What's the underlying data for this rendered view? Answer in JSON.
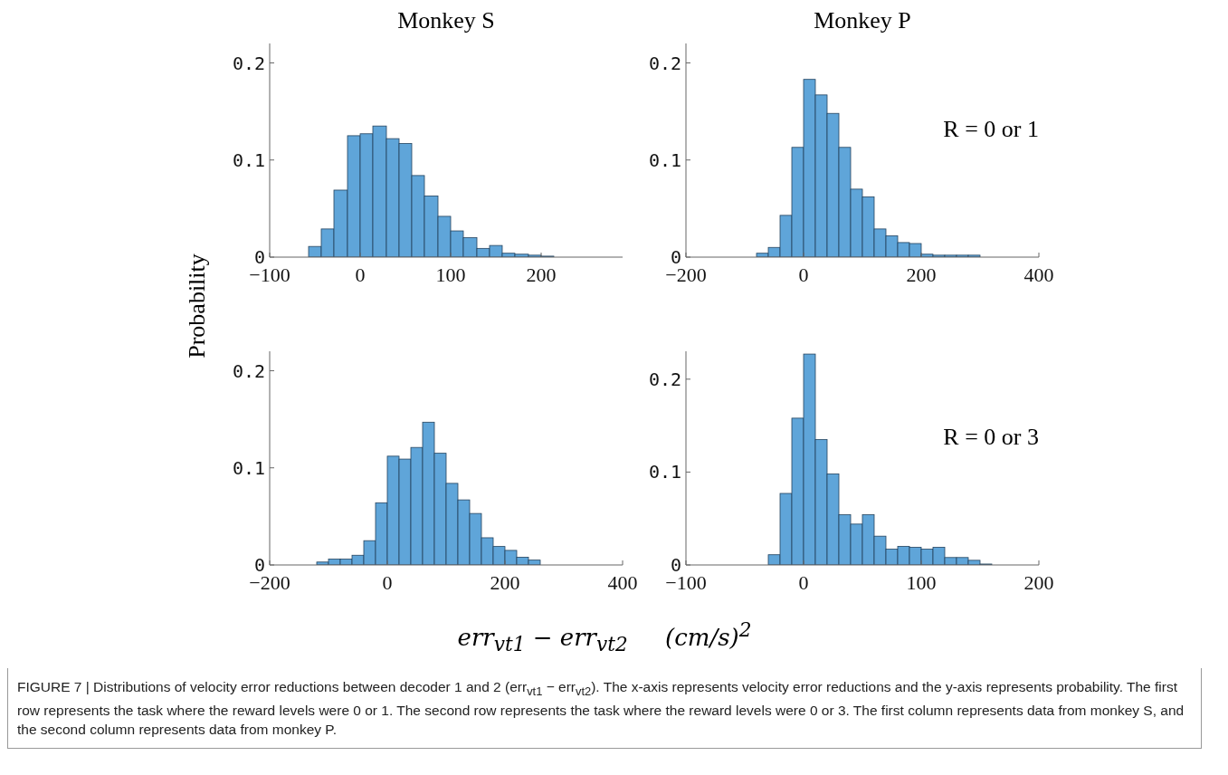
{
  "chart_data": [
    {
      "type": "histogram",
      "title": "Monkey S",
      "ylabel": "Probability",
      "color": "#5fa5d9",
      "bins": [
        -57,
        -43,
        -29,
        -14,
        0,
        14,
        29,
        43,
        57,
        71,
        86,
        100,
        114,
        129,
        143,
        157,
        171,
        186,
        200,
        214
      ],
      "values": [
        0.011,
        0.029,
        0.069,
        0.125,
        0.127,
        0.135,
        0.122,
        0.117,
        0.084,
        0.063,
        0.042,
        0.027,
        0.02,
        0.009,
        0.012,
        0.004,
        0.003,
        0.002,
        0.001
      ],
      "xlim": [
        -100,
        290
      ],
      "xticks": [
        -100,
        0,
        100,
        200
      ],
      "ylim": [
        0,
        0.22
      ],
      "yticks": [
        0,
        0.1,
        0.2
      ],
      "annotations": [
        "FIGURE 7 | Distributions of velocity error reductions between decoder 1 and 2 (err$_{vt1}$ − err$_{vt2}$). The x-axis represents velocity error reductions and the y-axis represents probability. The first row represents the task where the reward levels were 0 or 1. The second row represents the task where the reward levels were 0 or 3. The first column represents data from monkey S, and the second column represents data from monkey P."
      ]
    },
    {
      "type": "histogram",
      "title": "Monkey P",
      "color": "#5fa5d9",
      "bins": [
        -80,
        -60,
        -40,
        -20,
        0,
        20,
        40,
        60,
        80,
        100,
        120,
        140,
        160,
        180,
        200,
        220,
        240,
        260,
        280,
        300
      ],
      "values": [
        0.004,
        0.01,
        0.043,
        0.113,
        0.183,
        0.167,
        0.148,
        0.113,
        0.07,
        0.062,
        0.029,
        0.022,
        0.015,
        0.014,
        0.003,
        0.002,
        0.002,
        0.002,
        0.002
      ],
      "xlim": [
        -200,
        400
      ],
      "xticks": [
        -200,
        0,
        200,
        400
      ],
      "ylim": [
        0,
        0.22
      ],
      "yticks": [
        0,
        0.1,
        0.2
      ],
      "annotations": [
        "R = 0 or 1"
      ]
    },
    {
      "type": "histogram",
      "xlabel": "err$_{vt1}$ − err$_{vt2}$     (cm/s)$^{2}$",
      "color": "#5fa5d9",
      "bins": [
        -120,
        -100,
        -80,
        -60,
        -40,
        -20,
        0,
        20,
        40,
        60,
        80,
        100,
        120,
        140,
        160,
        180,
        200,
        220,
        240,
        260
      ],
      "values": [
        0.003,
        0.006,
        0.006,
        0.01,
        0.025,
        0.064,
        0.112,
        0.109,
        0.121,
        0.147,
        0.115,
        0.084,
        0.067,
        0.053,
        0.028,
        0.019,
        0.015,
        0.008,
        0.005
      ],
      "xlim": [
        -200,
        400
      ],
      "xticks": [
        -200,
        0,
        200,
        400
      ],
      "ylim": [
        0,
        0.22
      ],
      "yticks": [
        0,
        0.1,
        0.2
      ]
    },
    {
      "type": "histogram",
      "color": "#5fa5d9",
      "bins": [
        -30,
        -20,
        -10,
        0,
        10,
        20,
        30,
        40,
        50,
        60,
        70,
        80,
        90,
        100,
        110,
        120,
        130,
        140,
        150,
        160
      ],
      "values": [
        0.011,
        0.077,
        0.158,
        0.227,
        0.135,
        0.098,
        0.054,
        0.044,
        0.054,
        0.031,
        0.017,
        0.02,
        0.019,
        0.017,
        0.019,
        0.008,
        0.008,
        0.005,
        0.001
      ],
      "xlim": [
        -100,
        200
      ],
      "xticks": [
        -100,
        0,
        100,
        200
      ],
      "ylim": [
        0,
        0.23
      ],
      "yticks": [
        0,
        0.1,
        0.2
      ],
      "annotations": [
        "R = 0 or 3"
      ]
    }
  ]
}
